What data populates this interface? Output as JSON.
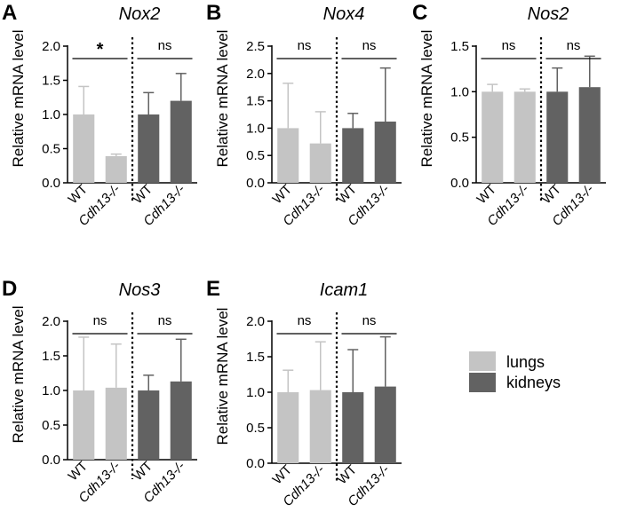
{
  "figure": {
    "legend": [
      {
        "label": "lungs",
        "color": "#c4c4c4"
      },
      {
        "label": "kidneys",
        "color": "#626262"
      }
    ]
  },
  "chart_data": [
    {
      "type": "bar",
      "panel": "A",
      "title": "Nox2",
      "ylabel": "Relative mRNA level",
      "ylim": [
        0,
        2.0
      ],
      "yticks": [
        "0.0",
        "0.5",
        "1.0",
        "1.5",
        "2.0"
      ],
      "categories": [
        "WT",
        "Cdh13-/-",
        "WT",
        "Cdh13-/-"
      ],
      "groups": [
        "lungs",
        "lungs",
        "kidneys",
        "kidneys"
      ],
      "values": [
        1.0,
        0.39,
        1.0,
        1.2
      ],
      "errors": [
        0.41,
        0.03,
        0.32,
        0.4
      ],
      "significance": [
        "*",
        "ns"
      ]
    },
    {
      "type": "bar",
      "panel": "B",
      "title": "Nox4",
      "ylabel": "Relative mRNA level",
      "ylim": [
        0,
        2.5
      ],
      "yticks": [
        "0.0",
        "0.5",
        "1.0",
        "1.5",
        "2.0",
        "2.5"
      ],
      "categories": [
        "WT",
        "Cdh13-/-",
        "WT",
        "Cdh13-/-"
      ],
      "groups": [
        "lungs",
        "lungs",
        "kidneys",
        "kidneys"
      ],
      "values": [
        1.0,
        0.72,
        1.0,
        1.12
      ],
      "errors": [
        0.82,
        0.58,
        0.27,
        0.98
      ],
      "significance": [
        "ns",
        "ns"
      ]
    },
    {
      "type": "bar",
      "panel": "C",
      "title": "Nos2",
      "ylabel": "Relative mRNA level",
      "ylim": [
        0,
        1.5
      ],
      "yticks": [
        "0.0",
        "0.5",
        "1.0",
        "1.5"
      ],
      "categories": [
        "WT",
        "Cdh13-/-",
        "WT",
        "Cdh13-/-"
      ],
      "groups": [
        "lungs",
        "lungs",
        "kidneys",
        "kidneys"
      ],
      "values": [
        1.0,
        1.0,
        1.0,
        1.05
      ],
      "errors": [
        0.08,
        0.03,
        0.26,
        0.34
      ],
      "significance": [
        "ns",
        "ns"
      ]
    },
    {
      "type": "bar",
      "panel": "D",
      "title": "Nos3",
      "ylabel": "Relative mRNA level",
      "ylim": [
        0,
        2.0
      ],
      "yticks": [
        "0.0",
        "0.5",
        "1.0",
        "1.5",
        "2.0"
      ],
      "categories": [
        "WT",
        "Cdh13-/-",
        "WT",
        "Cdh13-/-"
      ],
      "groups": [
        "lungs",
        "lungs",
        "kidneys",
        "kidneys"
      ],
      "values": [
        1.0,
        1.04,
        1.0,
        1.13
      ],
      "errors": [
        0.77,
        0.63,
        0.22,
        0.61
      ],
      "significance": [
        "ns",
        "ns"
      ]
    },
    {
      "type": "bar",
      "panel": "E",
      "title": "Icam1",
      "ylabel": "Relative mRNA level",
      "ylim": [
        0,
        2.0
      ],
      "yticks": [
        "0.0",
        "0.5",
        "1.0",
        "1.5",
        "2.0"
      ],
      "categories": [
        "WT",
        "Cdh13-/-",
        "WT",
        "Cdh13-/-"
      ],
      "groups": [
        "lungs",
        "lungs",
        "kidneys",
        "kidneys"
      ],
      "values": [
        1.0,
        1.03,
        1.0,
        1.08
      ],
      "errors": [
        0.31,
        0.68,
        0.6,
        0.7
      ],
      "significance": [
        "ns",
        "ns"
      ]
    }
  ]
}
